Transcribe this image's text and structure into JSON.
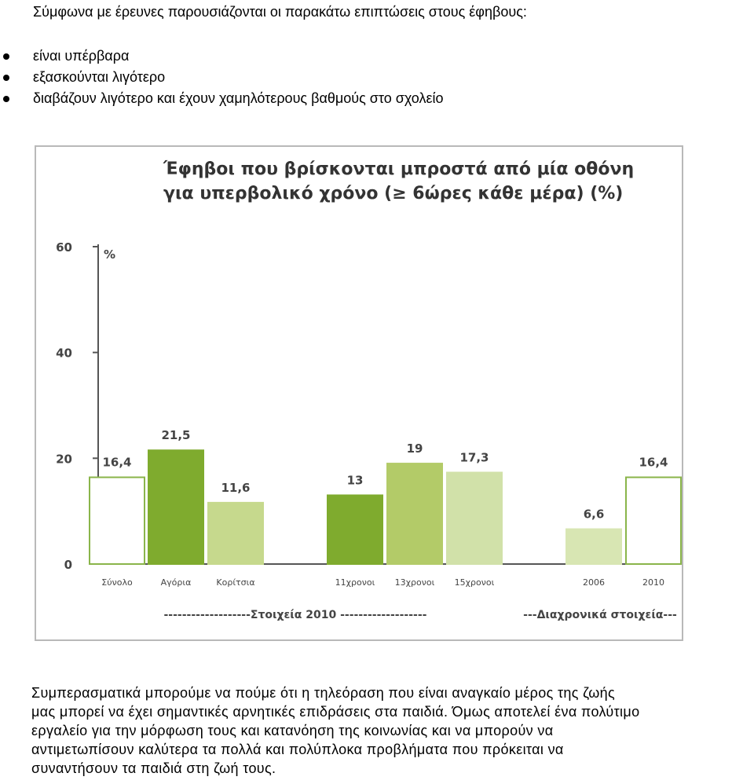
{
  "intro": "Σύμφωνα με έρευνες παρουσιάζονται οι παρακάτω επιπτώσεις στους έφηβους:",
  "bullets": [
    "είναι υπέρβαρα",
    "εξασκούνται λιγότερο",
    "διαβάζουν λιγότερο και έχουν χαμηλότερους βαθμούς στο σχολείο"
  ],
  "chart_data": {
    "type": "bar",
    "title_line1": "Έφηβοι που βρίσκονται μπροστά από μία οθόνη",
    "title_line2": "για υπερβολικό χρόνο (≥ 6ώρες κάθε μέρα) (%)",
    "ylabel": "%",
    "ylim": [
      0,
      60
    ],
    "yticks": [
      0,
      20,
      40,
      60
    ],
    "categories": [
      "Σύνολο",
      "Αγόρια",
      "Κορίτσια",
      "11χρονοι",
      "13χρονοι",
      "15χρονοι",
      "2006",
      "2010"
    ],
    "values": [
      16.4,
      21.5,
      11.6,
      13,
      19,
      17.3,
      6.6,
      16.4
    ],
    "value_labels": [
      "16,4",
      "21,5",
      "11,6",
      "13",
      "19",
      "17,3",
      "6,6",
      "16,4"
    ],
    "colors": [
      "#ffffff",
      "#7fab2e",
      "#c6d98d",
      "#7fab2e",
      "#b3cb68",
      "#d1e1a9",
      "#d8e6b3",
      "#ffffff"
    ],
    "bar_edge_color": "#8ab54a",
    "groups": [
      {
        "label": "Στοιχεία 2010",
        "dashes_left": "-------------------",
        "dashes_right": "-------------------"
      },
      {
        "label": "Διαχρονικά στοιχεία",
        "dashes_left": "---",
        "dashes_right": "---"
      }
    ]
  },
  "conclusion_lines": [
    "Συμπερασματικά μπορούμε να πούμε ότι η τηλεόραση που είναι αναγκαίο μέρος της ζωής",
    "μας μπορεί να έχει σημαντικές αρνητικές επιδράσεις στα παιδιά. Όμως αποτελεί ένα πολύτιμο",
    "εργαλείο για την μόρφωση τους και κατανόηση της κοινωνίας και να μπορούν να",
    "αντιμετωπίσουν καλύτερα τα πολλά και πολύπλοκα προβλήματα που πρόκειται να",
    "συναντήσουν τα παιδιά στη ζωή τους."
  ]
}
